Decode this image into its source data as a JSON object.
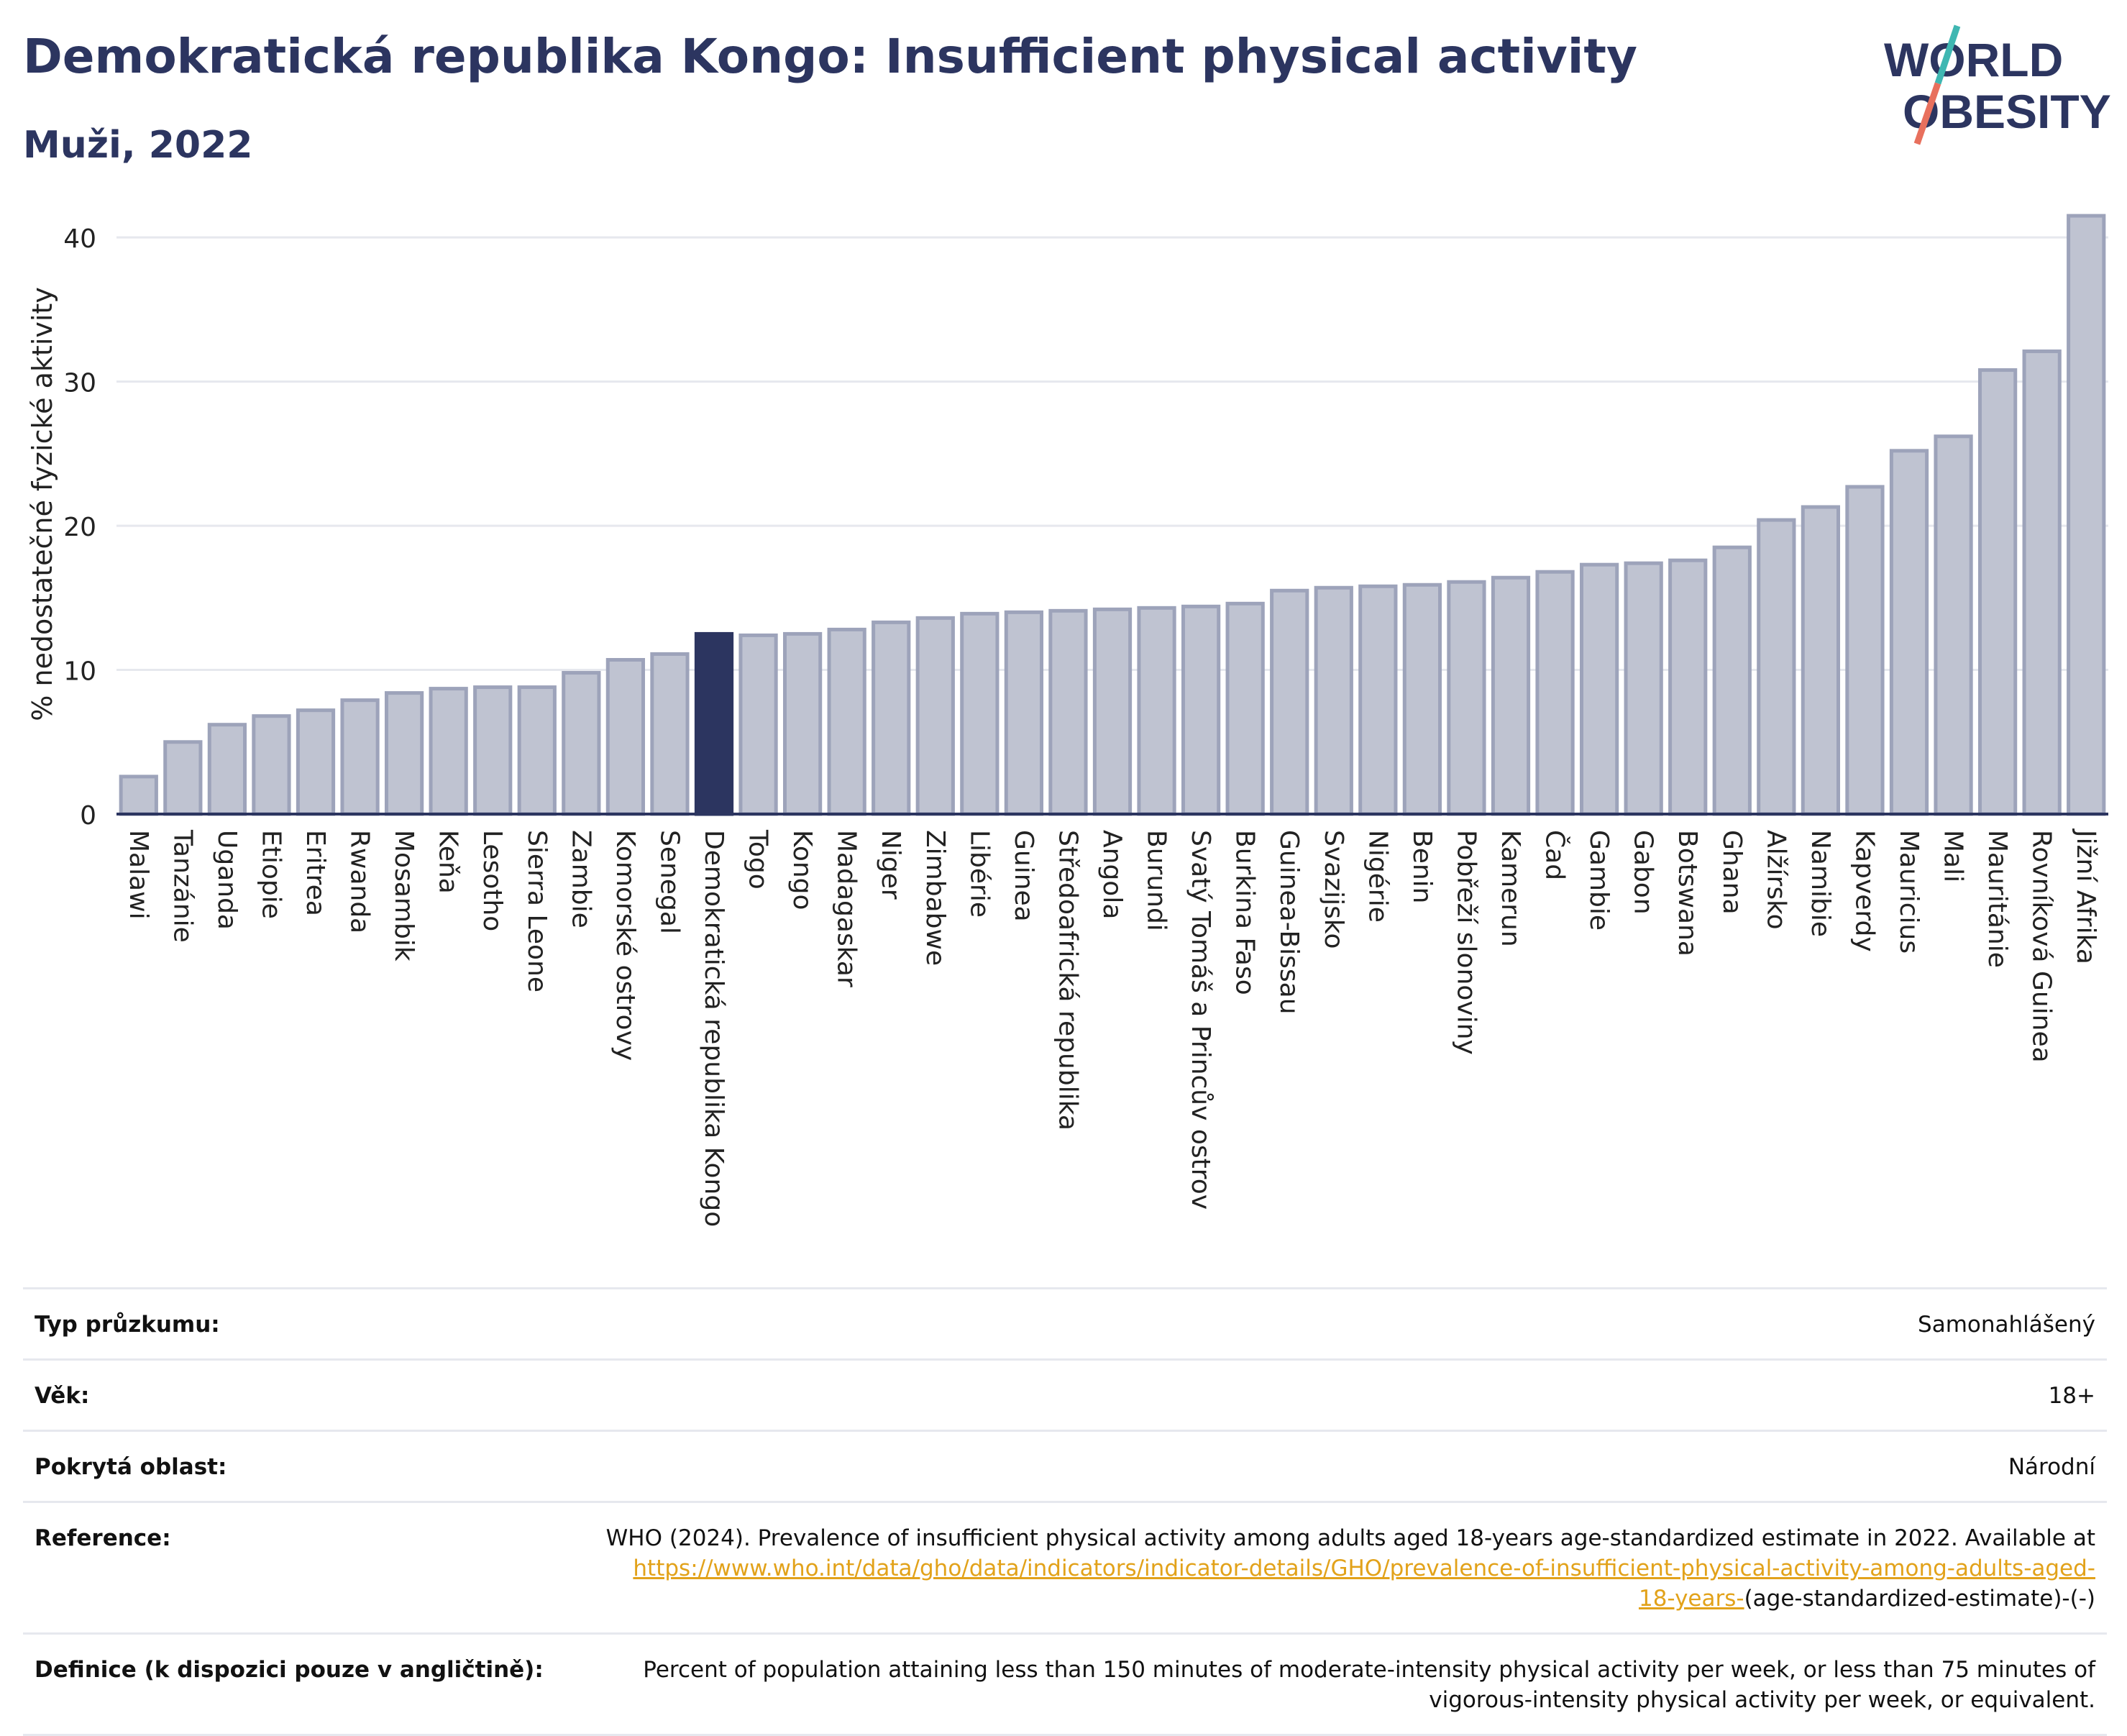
{
  "header": {
    "title": "Demokratická republika Kongo: Insufficient physical activity",
    "subtitle": "Muži, 2022"
  },
  "logo": {
    "line1": "WORLD",
    "line2": "OBESITY",
    "colors": {
      "text": "#2c3560",
      "accent_teal": "#3fb7b2",
      "accent_coral": "#e8705d"
    }
  },
  "colors": {
    "bar": "#bfc3d1",
    "bar_border": "#9da3ba",
    "highlight": "#2c3560",
    "grid": "#e6e8ee",
    "axis": "#2c3560"
  },
  "chart_data": {
    "type": "bar",
    "title": "",
    "xlabel": "",
    "ylabel": "% nedostatečné fyzické aktivity",
    "ylim": [
      0,
      43
    ],
    "yticks": [
      0,
      10,
      20,
      30,
      40
    ],
    "grid": "horizontal",
    "highlight": "Demokratická republika Kongo",
    "categories": [
      "Malawi",
      "Tanzánie",
      "Uganda",
      "Etiopie",
      "Eritrea",
      "Rwanda",
      "Mosambik",
      "Keňa",
      "Lesotho",
      "Sierra Leone",
      "Zambie",
      "Komorské ostrovy",
      "Senegal",
      "Demokratická republika Kongo",
      "Togo",
      "Kongo",
      "Madagaskar",
      "Niger",
      "Zimbabwe",
      "Libérie",
      "Guinea",
      "Středoafrická republika",
      "Angola",
      "Burundi",
      "Svatý Tomáš a Princův ostrov",
      "Burkina Faso",
      "Guinea-Bissau",
      "Svazijsko",
      "Nigérie",
      "Benin",
      "Pobřeží slonoviny",
      "Kamerun",
      "Čad",
      "Gambie",
      "Gabon",
      "Botswana",
      "Ghana",
      "Alžírsko",
      "Namibie",
      "Kapverdy",
      "Mauricius",
      "Mali",
      "Mauritánie",
      "Rovníková Guinea",
      "Jižní Afrika"
    ],
    "values": [
      2.6,
      5.0,
      6.2,
      6.8,
      7.2,
      7.9,
      8.4,
      8.7,
      8.8,
      8.8,
      9.8,
      10.7,
      11.1,
      12.5,
      12.4,
      12.5,
      12.8,
      13.3,
      13.6,
      13.9,
      14.0,
      14.1,
      14.2,
      14.3,
      14.4,
      14.6,
      15.5,
      15.7,
      15.8,
      15.9,
      16.1,
      16.4,
      16.8,
      17.3,
      17.4,
      17.6,
      18.5,
      20.4,
      21.3,
      22.7,
      25.2,
      26.2,
      30.8,
      32.1,
      41.5
    ]
  },
  "info": {
    "survey_type": {
      "label": "Typ průzkumu:",
      "value": "Samonahlášený"
    },
    "age": {
      "label": "Věk:",
      "value": "18+"
    },
    "coverage": {
      "label": "Pokrytá oblast:",
      "value": "Národní"
    },
    "reference": {
      "label": "Reference:",
      "text": "WHO (2024). Prevalence of insufficient physical activity among adults aged 18-years age-standardized estimate in 2022. Available at",
      "link": "https://www.who.int/data/gho/data/indicators/indicator-details/GHO/prevalence-of-insufficient-physical-activity-among-adults-aged-18-years-",
      "suffix": "(age-standardized-estimate)-(-)"
    },
    "definition": {
      "label": "Definice (k dispozici pouze v angličtině):",
      "value": "Percent of population attaining less than 150 minutes of moderate-intensity physical activity per week, or less than 75 minutes of vigorous-intensity physical activity per week, or equivalent."
    }
  }
}
